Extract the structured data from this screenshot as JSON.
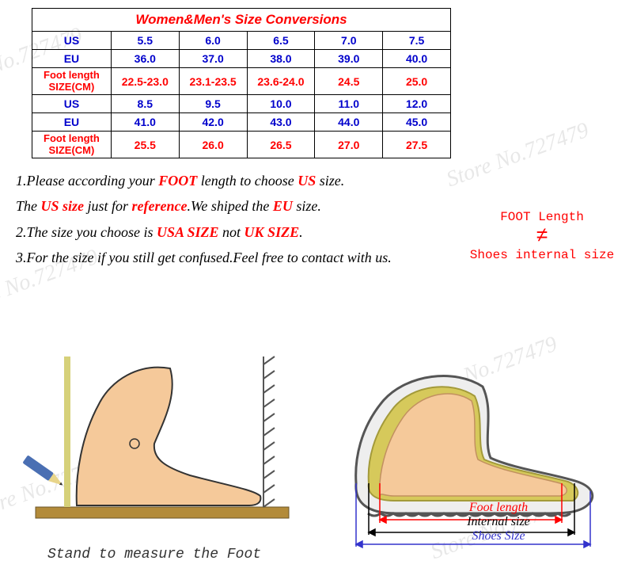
{
  "watermark_text": "Store No.727479",
  "table": {
    "title": "Women&Men's Size Conversions",
    "rows": [
      {
        "style": "blue",
        "label": "US",
        "cells": [
          "5.5",
          "6.0",
          "6.5",
          "7.0",
          "7.5"
        ]
      },
      {
        "style": "blue",
        "label": "EU",
        "cells": [
          "36.0",
          "37.0",
          "38.0",
          "39.0",
          "40.0"
        ]
      },
      {
        "style": "red",
        "label_l1": "Foot length",
        "label_l2": "SIZE(CM)",
        "cells": [
          "22.5-23.0",
          "23.1-23.5",
          "23.6-24.0",
          "24.5",
          "25.0"
        ]
      },
      {
        "style": "blue",
        "label": "US",
        "cells": [
          "8.5",
          "9.5",
          "10.0",
          "11.0",
          "12.0"
        ]
      },
      {
        "style": "blue",
        "label": "EU",
        "cells": [
          "41.0",
          "42.0",
          "43.0",
          "44.0",
          "45.0"
        ]
      },
      {
        "style": "red",
        "label_l1": "Foot length",
        "label_l2": "SIZE(CM)",
        "cells": [
          "25.5",
          "26.0",
          "26.5",
          "27.0",
          "27.5"
        ]
      }
    ],
    "border_color": "#000000",
    "blue_color": "#0000cc",
    "red_color": "#ff0000"
  },
  "instructions": {
    "i1a": "1.Please according your ",
    "i1b": "FOOT",
    "i1c": " length to choose ",
    "i1d": "US",
    "i1e": " size.",
    "i2a": "The ",
    "i2b": "US size ",
    "i2c": " just for ",
    "i2d": "reference",
    "i2e": ".We shiped the ",
    "i2f": "EU",
    "i2g": " size.",
    "i3a": "2.The size you choose is ",
    "i3b": "USA SIZE",
    "i3c": " not ",
    "i3d": "UK SIZE",
    "i3e": ".",
    "i4": "3.For the size if you still get confused.Feel free to contact with us."
  },
  "note": {
    "top": "FOOT Length",
    "symbol": "≠",
    "bottom": "Shoes internal size"
  },
  "diagram1": {
    "caption": "Stand to measure the Foot",
    "colors": {
      "foot_fill": "#f5c99a",
      "foot_stroke": "#333",
      "ground": "#b38b3a",
      "pencil_body": "#4a6fb3",
      "pencil_tip": "#e8d58a",
      "wall_hatch": "#555"
    }
  },
  "diagram2": {
    "labels": {
      "foot_length": "Foot length",
      "internal": "Internal size",
      "shoes": "Shoes Size"
    },
    "colors": {
      "shoe_outline": "#555",
      "shoe_inner": "#d6c95b",
      "foot_fill": "#f5c99a",
      "foot_length_color": "#ff0000",
      "internal_color": "#000",
      "shoes_color": "#3333cc"
    }
  }
}
